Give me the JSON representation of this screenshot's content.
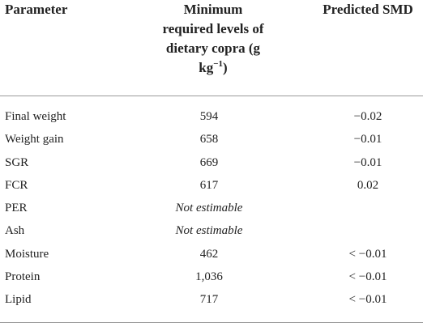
{
  "table": {
    "headers": {
      "parameter": "Parameter",
      "min_required_line1": "Minimum",
      "min_required_line2": "required levels of",
      "min_required_line3": "dietary copra (g",
      "min_required_line4_prefix": "kg",
      "min_required_line4_sup": "−1",
      "min_required_line4_suffix": ")",
      "predicted_smd": "Predicted SMD"
    },
    "rows": [
      {
        "parameter": "Final weight",
        "min_required": "594",
        "predicted_smd": "−0.02"
      },
      {
        "parameter": "Weight gain",
        "min_required": "658",
        "predicted_smd": "−0.01"
      },
      {
        "parameter": "SGR",
        "min_required": "669",
        "predicted_smd": "−0.01"
      },
      {
        "parameter": "FCR",
        "min_required": "617",
        "predicted_smd": "0.02"
      },
      {
        "parameter": "PER",
        "min_required": "Not estimable",
        "predicted_smd": ""
      },
      {
        "parameter": "Ash",
        "min_required": "Not estimable",
        "predicted_smd": ""
      },
      {
        "parameter": "Moisture",
        "min_required": "462",
        "predicted_smd": "< −0.01"
      },
      {
        "parameter": "Protein",
        "min_required": "1,036",
        "predicted_smd": "< −0.01"
      },
      {
        "parameter": "Lipid",
        "min_required": "717",
        "predicted_smd": "< −0.01"
      }
    ]
  }
}
